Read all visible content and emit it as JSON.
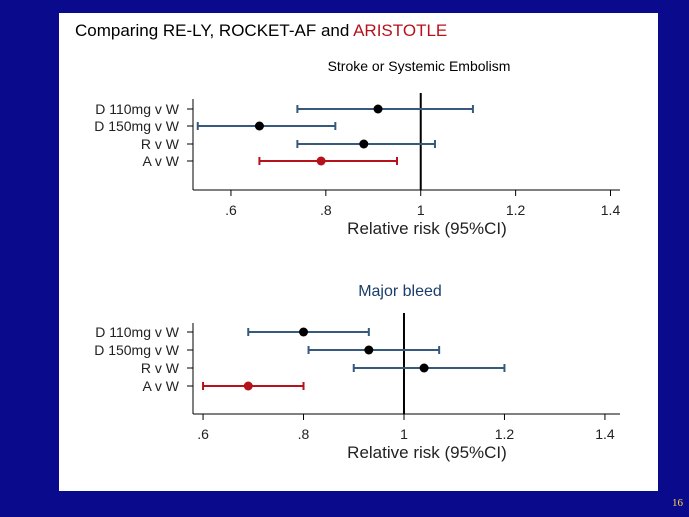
{
  "slide": {
    "title_prefix": "Comparing RE-LY, ROCKET-AF and ",
    "title_highlight": "ARISTOTLE",
    "slide_number": "16",
    "colors": {
      "background": "#0a0a8c",
      "panel": "#ffffff",
      "highlight": "#b5121b",
      "ci_line": "#36597e",
      "ci_line_highlight": "#b5121b",
      "point": "#000000",
      "point_highlight": "#b5121b",
      "axis": "#000000",
      "reference_line": "#000000",
      "slide_number": "#ffd34d"
    }
  },
  "chart_data": [
    {
      "type": "forest",
      "title": "Stroke or Systemic Embolism",
      "xlabel": "Relative risk (95%CI)",
      "x_ticks": [
        0.6,
        0.8,
        1,
        1.2,
        1.4
      ],
      "x_tick_labels": [
        ".6",
        ".8",
        "1",
        "1.2",
        "1.4"
      ],
      "xlim": [
        0.52,
        1.42
      ],
      "reference_x": 1,
      "rows": [
        {
          "label": "D 110mg v W",
          "estimate": 0.91,
          "lower": 0.74,
          "upper": 1.11,
          "highlight": false
        },
        {
          "label": "D 150mg v W",
          "estimate": 0.66,
          "lower": 0.53,
          "upper": 0.82,
          "highlight": false
        },
        {
          "label": "R v W",
          "estimate": 0.88,
          "lower": 0.74,
          "upper": 1.03,
          "highlight": false
        },
        {
          "label": "A v W",
          "estimate": 0.79,
          "lower": 0.66,
          "upper": 0.95,
          "highlight": true
        }
      ]
    },
    {
      "type": "forest",
      "title": "Major bleed",
      "xlabel": "Relative risk (95%CI)",
      "x_ticks": [
        0.6,
        0.8,
        1,
        1.2,
        1.4
      ],
      "x_tick_labels": [
        ".6",
        ".8",
        "1",
        "1.2",
        "1.4"
      ],
      "xlim": [
        0.58,
        1.43
      ],
      "reference_x": 1,
      "rows": [
        {
          "label": "D 110mg v W",
          "estimate": 0.8,
          "lower": 0.69,
          "upper": 0.93,
          "highlight": false
        },
        {
          "label": "D 150mg v W",
          "estimate": 0.93,
          "lower": 0.81,
          "upper": 1.07,
          "highlight": false
        },
        {
          "label": "R v W",
          "estimate": 1.04,
          "lower": 0.9,
          "upper": 1.2,
          "highlight": false
        },
        {
          "label": "A v W",
          "estimate": 0.69,
          "lower": 0.6,
          "upper": 0.8,
          "highlight": true
        }
      ]
    }
  ]
}
